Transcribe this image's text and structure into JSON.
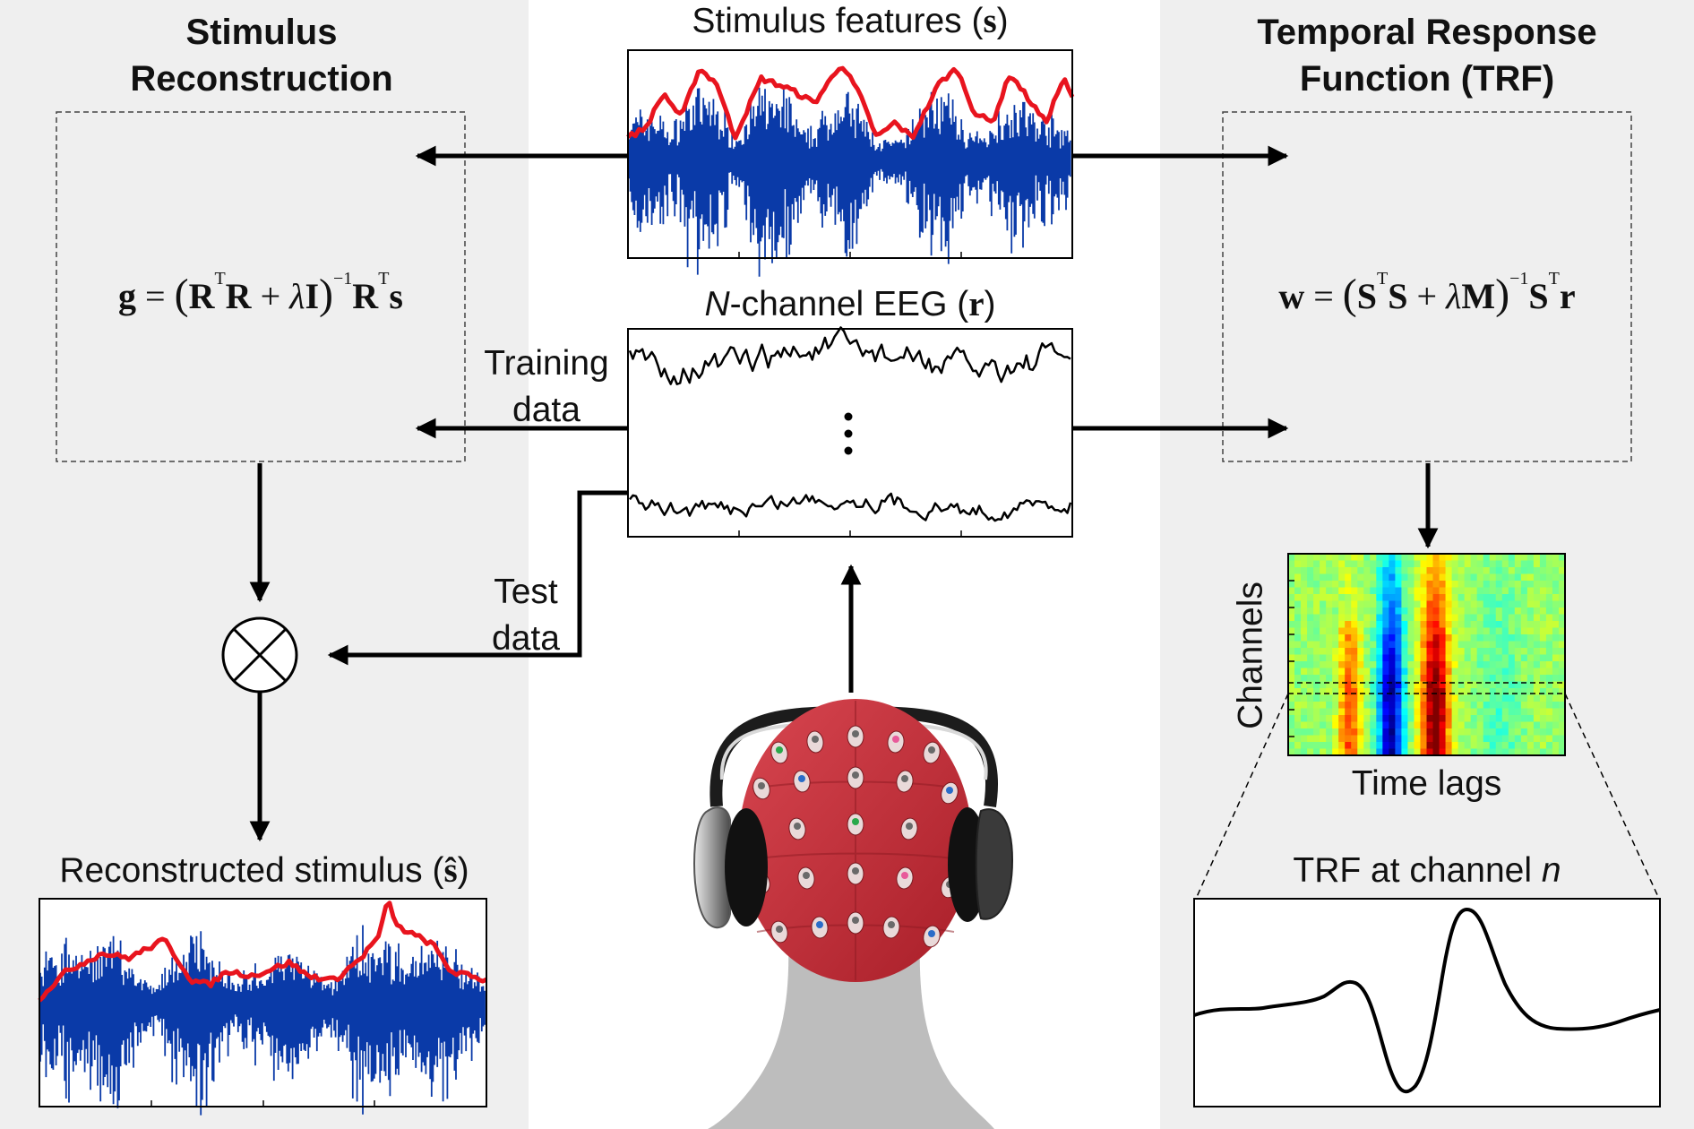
{
  "left_panel": {
    "title_line1": "Stimulus",
    "title_line2": "Reconstruction",
    "equation": {
      "lhs": "g",
      "eq": "=",
      "lparen": "(",
      "m1": "R",
      "t1": "T",
      "m2": "R",
      "plus": "+",
      "lambda": "λ",
      "m3": "I",
      "rparen": ")",
      "inv": "−1",
      "m4": "R",
      "t2": "T",
      "v": "s"
    },
    "reconstructed_label": "Reconstructed stimulus (",
    "reconstructed_symbol": "ŝ",
    "reconstructed_close": ")"
  },
  "right_panel": {
    "title_line1": "Temporal Response",
    "title_line2": "Function (TRF)",
    "equation": {
      "lhs": "w",
      "eq": "=",
      "lparen": "(",
      "m1": "S",
      "t1": "T",
      "m2": "S",
      "plus": "+",
      "lambda": "λ",
      "m3": "M",
      "rparen": ")",
      "inv": "−1",
      "m4": "S",
      "t2": "T",
      "v": "r"
    },
    "heatmap_ylabel": "Channels",
    "heatmap_xlabel": "Time lags",
    "trf_label": "TRF at channel ",
    "trf_channel": "n"
  },
  "center": {
    "stimulus_label": "Stimulus features (",
    "stimulus_symbol": "s",
    "stimulus_close": ")",
    "eeg_label_n": "N",
    "eeg_label": "-channel EEG (",
    "eeg_symbol": "r",
    "eeg_close": ")",
    "eeg_ellipsis": "⋮",
    "training_line1": "Training",
    "training_line2": "data",
    "test_line1": "Test",
    "test_line2": "data",
    "multiply_symbol": "⊗"
  },
  "colors": {
    "panel_bg": "#efefef",
    "waveform_blue": "#0a3aa8",
    "envelope_red": "#e8141e",
    "cap_red": "#c42b35",
    "skin_gray": "#bdbdbd"
  }
}
